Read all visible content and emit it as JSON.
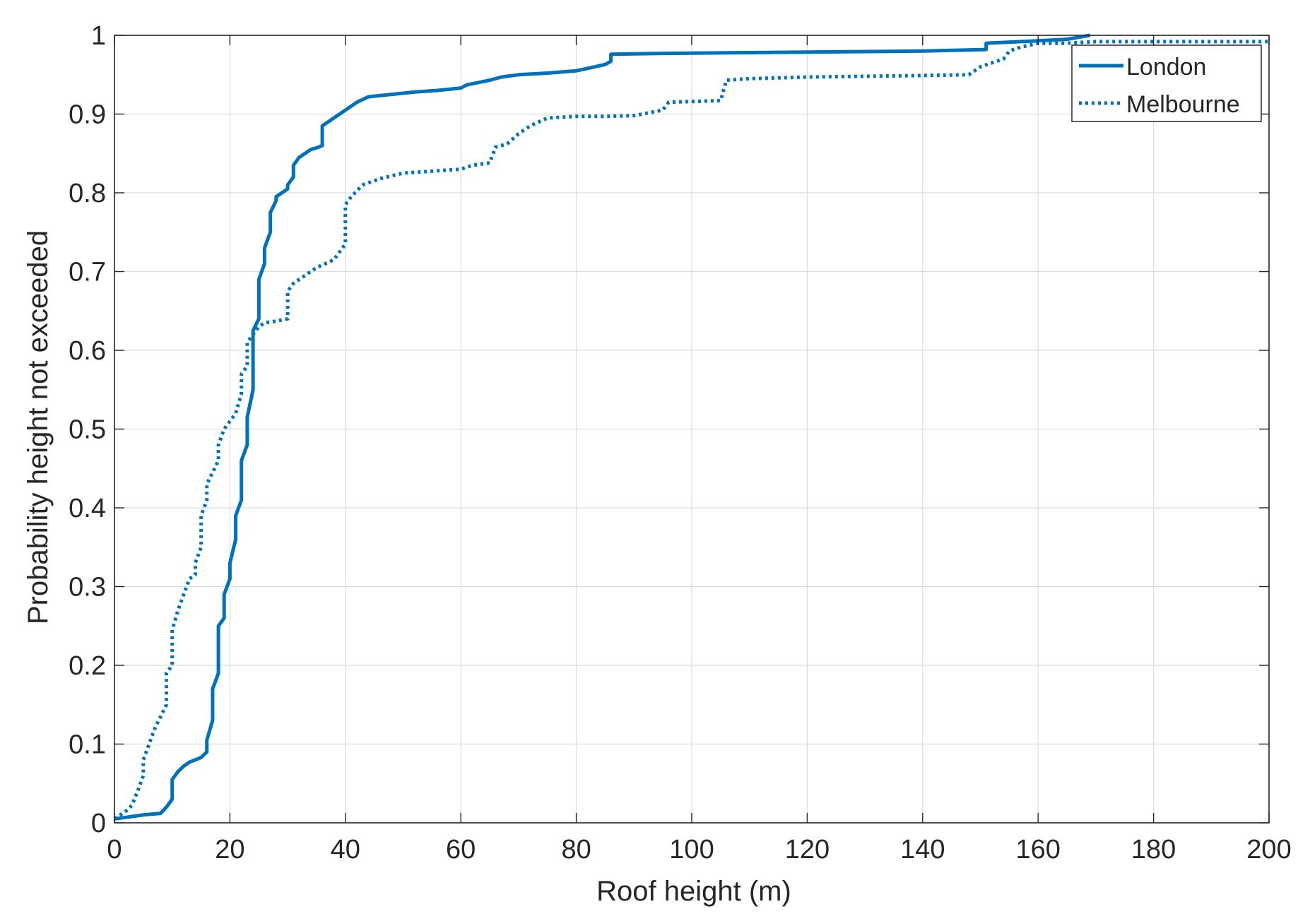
{
  "chart_data": {
    "type": "line",
    "title": "",
    "xlabel": "Roof height (m)",
    "ylabel": "Probability height not exceeded",
    "xlim": [
      0,
      200
    ],
    "ylim": [
      0,
      1
    ],
    "xticks": [
      0,
      20,
      40,
      60,
      80,
      100,
      120,
      140,
      160,
      180,
      200
    ],
    "yticks": [
      0,
      0.1,
      0.2,
      0.3,
      0.4,
      0.5,
      0.6,
      0.7,
      0.8,
      0.9,
      1
    ],
    "xtick_labels": [
      "0",
      "20",
      "40",
      "60",
      "80",
      "100",
      "120",
      "140",
      "160",
      "180",
      "200"
    ],
    "ytick_labels": [
      "0",
      "0.1",
      "0.2",
      "0.3",
      "0.4",
      "0.5",
      "0.6",
      "0.7",
      "0.8",
      "0.9",
      "1"
    ],
    "grid": true,
    "legend_position": "top-right",
    "line_color": "#0072BD",
    "series": [
      {
        "name": "London",
        "style": "solid",
        "x": [
          0,
          1,
          3,
          5,
          8,
          9,
          10,
          10,
          11,
          12,
          13,
          14,
          15,
          16,
          16,
          17,
          17,
          18,
          18,
          19,
          19,
          20,
          20,
          21,
          21,
          22,
          22,
          23,
          23,
          24,
          24,
          25,
          25,
          26,
          26,
          27,
          27,
          28,
          28,
          30,
          30,
          31,
          31,
          32,
          33,
          34,
          35,
          36,
          36,
          38,
          40,
          42,
          44,
          48,
          52,
          56,
          60,
          61,
          63,
          65,
          67,
          70,
          75,
          80,
          82,
          85,
          86,
          86,
          95,
          110,
          125,
          140,
          151,
          151,
          160,
          165,
          169
        ],
        "y": [
          0.005,
          0.006,
          0.008,
          0.01,
          0.012,
          0.02,
          0.03,
          0.055,
          0.065,
          0.072,
          0.077,
          0.08,
          0.083,
          0.09,
          0.105,
          0.13,
          0.17,
          0.19,
          0.25,
          0.26,
          0.29,
          0.31,
          0.33,
          0.36,
          0.39,
          0.41,
          0.46,
          0.48,
          0.515,
          0.55,
          0.625,
          0.64,
          0.69,
          0.71,
          0.73,
          0.75,
          0.775,
          0.79,
          0.795,
          0.805,
          0.81,
          0.82,
          0.835,
          0.845,
          0.85,
          0.855,
          0.857,
          0.86,
          0.885,
          0.895,
          0.905,
          0.915,
          0.922,
          0.925,
          0.928,
          0.93,
          0.933,
          0.937,
          0.94,
          0.943,
          0.947,
          0.95,
          0.952,
          0.955,
          0.958,
          0.963,
          0.967,
          0.976,
          0.977,
          0.978,
          0.979,
          0.98,
          0.982,
          0.99,
          0.993,
          0.995,
          1.0
        ]
      },
      {
        "name": "Melbourne",
        "style": "dotted",
        "x": [
          0,
          1,
          2,
          3,
          4,
          5,
          5,
          6,
          7,
          8,
          9,
          9,
          10,
          10,
          11,
          12,
          13,
          14,
          14,
          15,
          15,
          16,
          16,
          17,
          18,
          18,
          19,
          20,
          21,
          22,
          22,
          23,
          23,
          24,
          25,
          26,
          28,
          30,
          30,
          31,
          33,
          35,
          38,
          40,
          40,
          41,
          43,
          46,
          50,
          56,
          60,
          62,
          65,
          66,
          68,
          70,
          72,
          75,
          80,
          85,
          90,
          95,
          96,
          100,
          105,
          106,
          110,
          120,
          130,
          140,
          148,
          150,
          152,
          154,
          155,
          157,
          160,
          165,
          170,
          180,
          190,
          200
        ],
        "y": [
          0.005,
          0.01,
          0.015,
          0.022,
          0.04,
          0.06,
          0.08,
          0.1,
          0.12,
          0.135,
          0.15,
          0.19,
          0.2,
          0.245,
          0.27,
          0.29,
          0.31,
          0.315,
          0.33,
          0.35,
          0.39,
          0.41,
          0.43,
          0.445,
          0.46,
          0.48,
          0.5,
          0.51,
          0.52,
          0.545,
          0.57,
          0.58,
          0.61,
          0.62,
          0.63,
          0.635,
          0.637,
          0.64,
          0.675,
          0.685,
          0.695,
          0.705,
          0.715,
          0.735,
          0.785,
          0.795,
          0.81,
          0.818,
          0.825,
          0.828,
          0.83,
          0.835,
          0.838,
          0.858,
          0.862,
          0.875,
          0.885,
          0.895,
          0.897,
          0.897,
          0.898,
          0.905,
          0.915,
          0.916,
          0.917,
          0.943,
          0.945,
          0.947,
          0.948,
          0.949,
          0.95,
          0.96,
          0.965,
          0.97,
          0.98,
          0.985,
          0.99,
          0.99,
          0.992,
          0.992,
          0.992,
          0.992
        ]
      }
    ]
  }
}
